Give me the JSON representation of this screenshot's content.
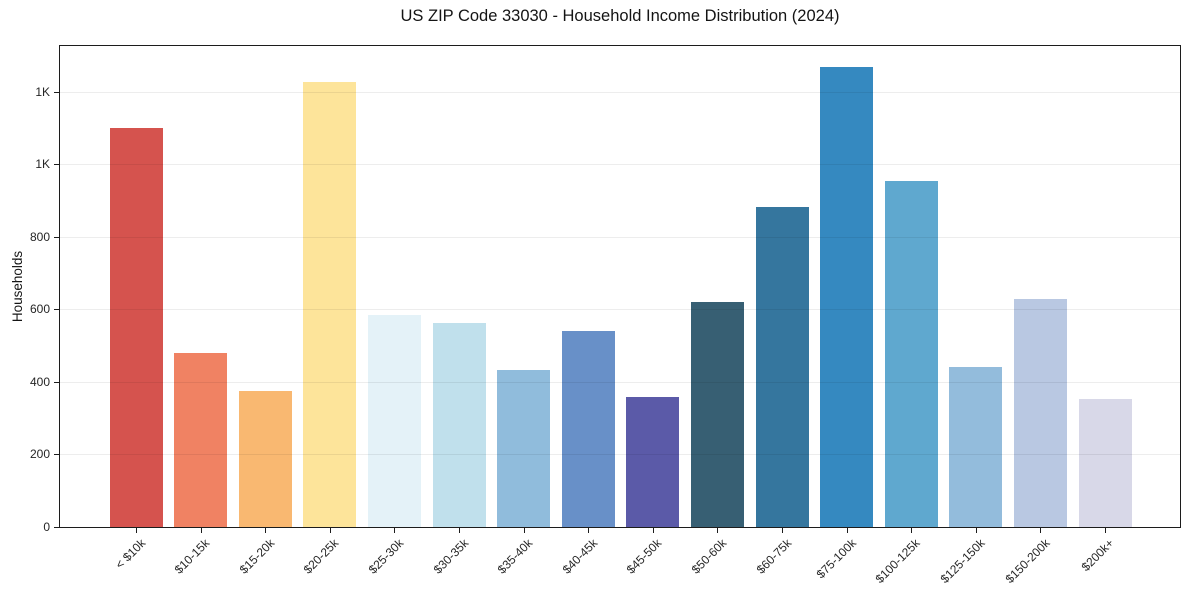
{
  "chart_data": {
    "type": "bar",
    "title": "US ZIP Code 33030 - Household Income Distribution (2024)",
    "xlabel": "",
    "ylabel": "Households",
    "categories": [
      "< $10k",
      "$10-15k",
      "$15-20k",
      "$20-25k",
      "$25-30k",
      "$30-35k",
      "$35-40k",
      "$40-45k",
      "$45-50k",
      "$50-60k",
      "$60-75k",
      "$75-100k",
      "$100-125k",
      "$125-150k",
      "$150-200k",
      "$200k+"
    ],
    "values": [
      1100,
      480,
      374,
      1228,
      586,
      563,
      432,
      540,
      358,
      620,
      882,
      1268,
      955,
      441,
      629,
      352
    ],
    "colors": [
      "#d5534e",
      "#f08263",
      "#f9b871",
      "#fde49a",
      "#e4f2f8",
      "#c0e0ec",
      "#90bcdc",
      "#6890c8",
      "#5b5aa8",
      "#375f73",
      "#35769e",
      "#3589c0",
      "#5fa8cf",
      "#93bcdc",
      "#b9c8e2",
      "#d8d8e8"
    ],
    "ylim": [
      0,
      1332
    ],
    "yticks": [
      {
        "value": 0,
        "label": "0"
      },
      {
        "value": 200,
        "label": "200"
      },
      {
        "value": 400,
        "label": "400"
      },
      {
        "value": 600,
        "label": "600"
      },
      {
        "value": 800,
        "label": "800"
      },
      {
        "value": 1000,
        "label": "1K"
      },
      {
        "value": 1200,
        "label": "1K"
      }
    ],
    "grid": "horizontal",
    "legend": "none"
  }
}
